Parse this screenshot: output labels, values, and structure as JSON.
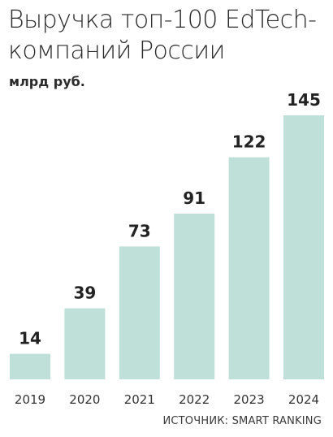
{
  "header": {
    "title": "Выручка топ-100 EdTech-компаний России",
    "subtitle": "млрд руб."
  },
  "footer": {
    "source": "ИСТОЧНИК: SMART RANKING"
  },
  "colors": {
    "bar": "#bfe0d8",
    "text": "#222222"
  },
  "chart_data": {
    "type": "bar",
    "title": "Выручка топ-100 EdTech-компаний России",
    "ylabel": "млрд руб.",
    "categories": [
      "2019",
      "2020",
      "2021",
      "2022",
      "2023",
      "2024"
    ],
    "values": [
      14,
      39,
      73,
      91,
      122,
      145
    ],
    "data_labels": [
      "14",
      "39",
      "73",
      "91",
      "122",
      "145"
    ],
    "ylim": [
      0,
      145
    ],
    "grid": false,
    "legend": "none"
  }
}
